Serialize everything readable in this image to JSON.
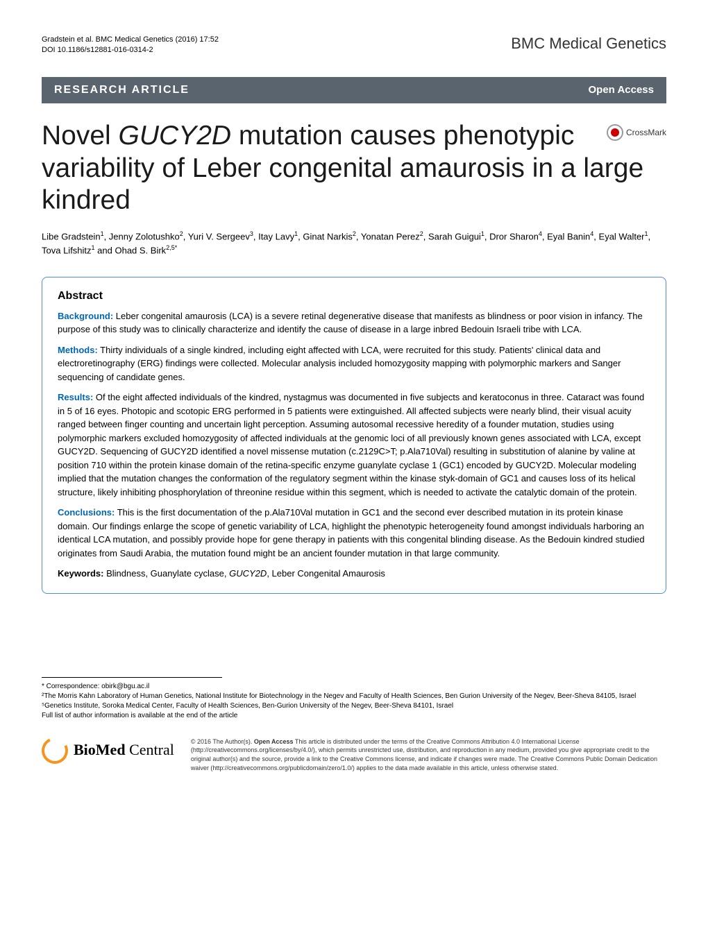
{
  "header": {
    "citation_line1": "Gradstein et al. BMC Medical Genetics  (2016) 17:52",
    "citation_line2": "DOI 10.1186/s12881-016-0314-2",
    "journal": "BMC Medical Genetics"
  },
  "bar": {
    "article_type": "RESEARCH ARTICLE",
    "open_access": "Open Access"
  },
  "title": {
    "prefix": "Novel ",
    "gene": "GUCY2D",
    "suffix": " mutation causes phenotypic variability of Leber congenital amaurosis in a large kindred"
  },
  "crossmark_label": "CrossMark",
  "authors_html": "Libe Gradstein<sup>1</sup>, Jenny Zolotushko<sup>2</sup>, Yuri V. Sergeev<sup>3</sup>, Itay Lavy<sup>1</sup>, Ginat Narkis<sup>2</sup>, Yonatan Perez<sup>2</sup>, Sarah Guigui<sup>1</sup>, Dror Sharon<sup>4</sup>, Eyal Banin<sup>4</sup>, Eyal Walter<sup>1</sup>, Tova Lifshitz<sup>1</sup> and Ohad S. Birk<sup>2,5*</sup>",
  "abstract": {
    "heading": "Abstract",
    "background_label": "Background:",
    "background_text": " Leber congenital amaurosis (LCA) is a severe retinal degenerative disease that manifests as blindness or poor vision in infancy. The purpose of this study was to clinically characterize and identify the cause of disease in a large inbred Bedouin Israeli tribe with LCA.",
    "methods_label": "Methods:",
    "methods_text": " Thirty individuals of a single kindred, including eight affected with LCA, were recruited for this study. Patients' clinical data and electroretinography (ERG) findings were collected. Molecular analysis included homozygosity mapping with polymorphic markers and Sanger sequencing of candidate genes.",
    "results_label": "Results:",
    "results_text_1": " Of the eight affected individuals of the kindred, nystagmus was documented in five subjects and keratoconus in three. Cataract was found in 5 of 16 eyes. Photopic and scotopic ERG performed in 5 patients were extinguished. All affected subjects were nearly blind, their visual acuity ranged between finger counting and uncertain light perception. Assuming autosomal recessive heredity of a founder mutation, studies using polymorphic markers excluded homozygosity of affected individuals at the genomic loci of all previously known genes associated with LCA, except ",
    "results_gene1": "GUCY2D",
    "results_text_2": ". Sequencing of ",
    "results_gene2": "GUCY2D",
    "results_text_3": " identified a novel missense mutation (c.2129C>T; p.Ala710Val) resulting in substitution of alanine by valine at position 710 within the protein kinase domain of the retina-specific enzyme guanylate cyclase 1 (GC1) encoded by ",
    "results_gene3": "GUCY2D",
    "results_text_4": ". Molecular modeling implied that the mutation changes the conformation of the regulatory segment within the kinase styk-domain of GC1 and causes loss of its helical structure, likely inhibiting phosphorylation of threonine residue within this segment, which is needed to activate the catalytic domain of the protein.",
    "conclusions_label": "Conclusions:",
    "conclusions_text": " This is the first documentation of the p.Ala710Val mutation in GC1 and the second ever described mutation in its protein kinase domain. Our findings enlarge the scope of genetic variability of LCA, highlight the phenotypic heterogeneity found amongst individuals harboring an identical LCA mutation, and possibly provide hope for gene therapy in patients with this congenital blinding disease. As the Bedouin kindred studied originates from Saudi Arabia, the mutation found might be an ancient founder mutation in that large community.",
    "keywords_label": "Keywords:",
    "keywords_text_1": " Blindness, Guanylate cyclase, ",
    "keywords_gene": "GUCY2D",
    "keywords_text_2": ", Leber Congenital Amaurosis"
  },
  "correspondence": {
    "line1": "* Correspondence: obirk@bgu.ac.il",
    "line2": "²The Morris Kahn Laboratory of Human Genetics, National Institute for Biotechnology in the Negev and Faculty of Health Sciences, Ben Gurion University of the Negev, Beer-Sheva 84105, Israel",
    "line3": "⁵Genetics Institute, Soroka Medical Center, Faculty of Health Sciences, Ben-Gurion University of the Negev, Beer-Sheva 84101, Israel",
    "line4": "Full list of author information is available at the end of the article"
  },
  "biomed": {
    "text": "BioMed Central"
  },
  "license": {
    "copyright": "© 2016 The Author(s). ",
    "oa_label": "Open Access",
    "text": " This article is distributed under the terms of the Creative Commons Attribution 4.0 International License (http://creativecommons.org/licenses/by/4.0/), which permits unrestricted use, distribution, and reproduction in any medium, provided you give appropriate credit to the original author(s) and the source, provide a link to the Creative Commons license, and indicate if changes were made. The Creative Commons Public Domain Dedication waiver (http://creativecommons.org/publicdomain/zero/1.0/) applies to the data made available in this article, unless otherwise stated."
  },
  "colors": {
    "bar_bg": "#5a646e",
    "abstract_border": "#4a90d9",
    "label_color": "#0066b3",
    "logo_orange": "#f7941e"
  }
}
